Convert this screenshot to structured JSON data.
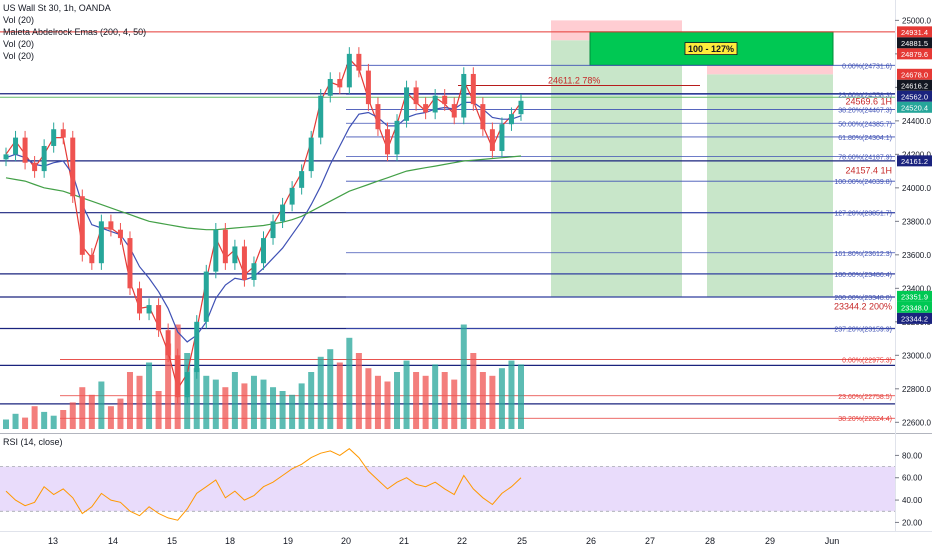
{
  "legend": {
    "title": "US Wall St 30, 1h, OANDA",
    "vol1": "Vol (20)",
    "emas": "Maleta Abdelrock Emas (200, 4, 50)",
    "vol2": "Vol (20)",
    "vol3": "Vol (20)",
    "rsi": "RSI (14, close)"
  },
  "colors": {
    "candle_up": "#26a69a",
    "candle_down": "#ef5350",
    "ema_fast": "#e53935",
    "ema_mid": "#3f51b5",
    "ema_slow": "#43a047",
    "rsi_line": "#ff9800",
    "rsi_band": "#e9dcfb",
    "navy_line": "#1a237e",
    "fib_blue": "#3f51b5",
    "fib_red": "#e53935",
    "target_green": "#00c853",
    "zone_green": "#c8e6c9",
    "zone_red": "#ffcdd2"
  },
  "chart_data": [
    {
      "type": "line",
      "title": "US Wall St 30, 1h, OANDA",
      "x_ticks": [
        "13",
        "14",
        "15",
        "18",
        "19",
        "20",
        "21",
        "22",
        "25",
        "26",
        "27",
        "28",
        "29",
        "Jun"
      ],
      "ylim": [
        22560,
        25050
      ],
      "y_ticks": [
        22600,
        22800,
        23000,
        23200,
        23400,
        23600,
        23800,
        24000,
        24200,
        24400,
        24600,
        24800,
        25000
      ],
      "y_tick_labels": [
        "22600.0",
        "22800.0",
        "23000.0",
        "23200.0",
        "23400.0",
        "23600.0",
        "23800.0",
        "24000.0",
        "24200.0",
        "24400.0",
        "24600.0",
        "24800.0",
        "25000.0"
      ],
      "series": [
        {
          "role": "price",
          "values": [
            24200,
            24300,
            24150,
            24100,
            24250,
            24350,
            24300,
            23950,
            23600,
            23550,
            23800,
            23750,
            23700,
            23400,
            23250,
            23300,
            23150,
            23000,
            22750,
            22900,
            23200,
            23500,
            23750,
            23550,
            23650,
            23450,
            23550,
            23700,
            23800,
            23900,
            24000,
            24100,
            24300,
            24550,
            24650,
            24600,
            24800,
            24700,
            24500,
            24350,
            24200,
            24400,
            24600,
            24500,
            24450,
            24550,
            24500,
            24420,
            24680,
            24500,
            24350,
            24220,
            24380,
            24440,
            24520
          ]
        },
        {
          "role": "ema-fast",
          "values": [
            24200,
            24280,
            24200,
            24120,
            24200,
            24300,
            24300,
            24000,
            23650,
            23580,
            23760,
            23760,
            23720,
            23440,
            23280,
            23290,
            23170,
            23020,
            22800,
            22890,
            23150,
            23450,
            23700,
            23580,
            23630,
            23480,
            23530,
            23680,
            23780,
            23880,
            23990,
            24090,
            24280,
            24520,
            24630,
            24610,
            24770,
            24710,
            24530,
            24380,
            24230,
            24380,
            24570,
            24510,
            24460,
            24540,
            24500,
            24440,
            24640,
            24520,
            24370,
            24240,
            24370,
            24430,
            24510
          ]
        },
        {
          "role": "ema-mid",
          "values": [
            24180,
            24200,
            24180,
            24140,
            24130,
            24150,
            24160,
            24080,
            23900,
            23780,
            23760,
            23740,
            23720,
            23640,
            23530,
            23460,
            23380,
            23280,
            23140,
            23080,
            23120,
            23200,
            23340,
            23420,
            23460,
            23450,
            23470,
            23520,
            23580,
            23640,
            23720,
            23800,
            23900,
            24010,
            24140,
            24250,
            24360,
            24440,
            24450,
            24420,
            24370,
            24370,
            24420,
            24440,
            24450,
            24470,
            24480,
            24470,
            24510,
            24510,
            24470,
            24420,
            24410,
            24410,
            24430
          ]
        },
        {
          "role": "ema-slow",
          "values": [
            24060,
            24050,
            24040,
            24020,
            24000,
            23990,
            23980,
            23960,
            23940,
            23920,
            23900,
            23880,
            23860,
            23840,
            23820,
            23800,
            23790,
            23780,
            23770,
            23760,
            23755,
            23750,
            23750,
            23755,
            23760,
            23765,
            23770,
            23775,
            23785,
            23795,
            23810,
            23830,
            23860,
            23890,
            23920,
            23950,
            23980,
            24000,
            24020,
            24040,
            24060,
            24080,
            24100,
            24110,
            24120,
            24130,
            24140,
            24150,
            24160,
            24165,
            24170,
            24175,
            24180,
            24185,
            24190
          ]
        }
      ],
      "volume": [
        5,
        8,
        6,
        12,
        9,
        7,
        10,
        14,
        22,
        18,
        25,
        12,
        16,
        30,
        28,
        35,
        20,
        45,
        55,
        40,
        32,
        28,
        26,
        22,
        30,
        24,
        28,
        26,
        22,
        20,
        18,
        24,
        30,
        38,
        42,
        35,
        48,
        40,
        32,
        28,
        25,
        30,
        36,
        30,
        28,
        34,
        30,
        26,
        55,
        40,
        30,
        28,
        32,
        36,
        34
      ],
      "annotations": {
        "price_badges": [
          {
            "text": "24931.4",
            "price": 24931.4,
            "color": "#e53935"
          },
          {
            "text": "24881.5",
            "price": 24881.5,
            "color": "#131722"
          },
          {
            "text": "24879.6",
            "price": 24879.6,
            "color": "#e53935"
          },
          {
            "text": "24678.0",
            "price": 24678.0,
            "color": "#e53935"
          },
          {
            "text": "24616.2",
            "price": 24616.2,
            "color": "#131722"
          },
          {
            "text": "24562.0",
            "price": 24562.0,
            "color": "#1a237e"
          },
          {
            "text": "24520.4",
            "price": 24520.4,
            "color": "#26a69a"
          },
          {
            "text": "24161.2",
            "price": 24161.2,
            "color": "#1a237e"
          },
          {
            "text": "23351.9",
            "price": 23351.9,
            "color": "#00c853"
          },
          {
            "text": "23348.0",
            "price": 23348.0,
            "color": "#00c853"
          },
          {
            "text": "23344.2",
            "price": 23344.2,
            "color": "#1a237e"
          }
        ],
        "upper_fib": [
          {
            "text": "0.00%(24731.6)",
            "price": 24731.6
          },
          {
            "text": "23.60%(24558.3)",
            "price": 24558.3
          },
          {
            "text": "38.20%(24467.3)",
            "price": 24467.3
          },
          {
            "text": "50.00%(24385.7)",
            "price": 24385.7
          },
          {
            "text": "61.80%(24304.1)",
            "price": 24304.1
          },
          {
            "text": "78.60%(24187.9)",
            "price": 24187.9
          },
          {
            "text": "100.00%(24039.8)",
            "price": 24039.8
          },
          {
            "text": "127.20%(23851.7)",
            "price": 23851.7
          },
          {
            "text": "161.80%(23612.3)",
            "price": 23612.3
          },
          {
            "text": "180.00%(23486.4)",
            "price": 23486.4
          },
          {
            "text": "200.00%(23348.0)",
            "price": 23348.0
          },
          {
            "text": "237.20%(23159.9)",
            "price": 23159.9
          }
        ],
        "lower_fib": [
          {
            "text": "0.00%(22975.3)",
            "price": 22975.3
          },
          {
            "text": "23.60%(22758.5)",
            "price": 22758.5
          },
          {
            "text": "38.20%(22624.4)",
            "price": 22624.4
          }
        ],
        "navy_levels": [
          24562.0,
          24161.2,
          23851.7,
          23486.4,
          23348.0,
          23159.9,
          22940,
          22710
        ],
        "red_level": 24931.4,
        "green_level": 24541,
        "fib_box_label": "24611.2 78%",
        "label_1h_a": "24569.6 1H",
        "label_1h_b": "24157.4 1H",
        "label_200": "23344.2 200%",
        "target_label": "100 - 127%"
      }
    },
    {
      "type": "line",
      "title": "RSI (14, close)",
      "ylim": [
        15,
        92
      ],
      "y_ticks": [
        20,
        40,
        60,
        80
      ],
      "y_tick_labels": [
        "20.00",
        "40.00",
        "60.00",
        "80.00"
      ],
      "band": [
        30,
        70
      ],
      "values": [
        48,
        40,
        35,
        38,
        52,
        45,
        50,
        42,
        28,
        34,
        46,
        40,
        38,
        30,
        26,
        34,
        28,
        24,
        22,
        32,
        46,
        52,
        58,
        42,
        48,
        40,
        44,
        52,
        56,
        62,
        68,
        72,
        78,
        82,
        84,
        80,
        86,
        78,
        66,
        58,
        50,
        56,
        60,
        54,
        52,
        56,
        50,
        45,
        62,
        50,
        42,
        36,
        46,
        52,
        60
      ]
    }
  ]
}
